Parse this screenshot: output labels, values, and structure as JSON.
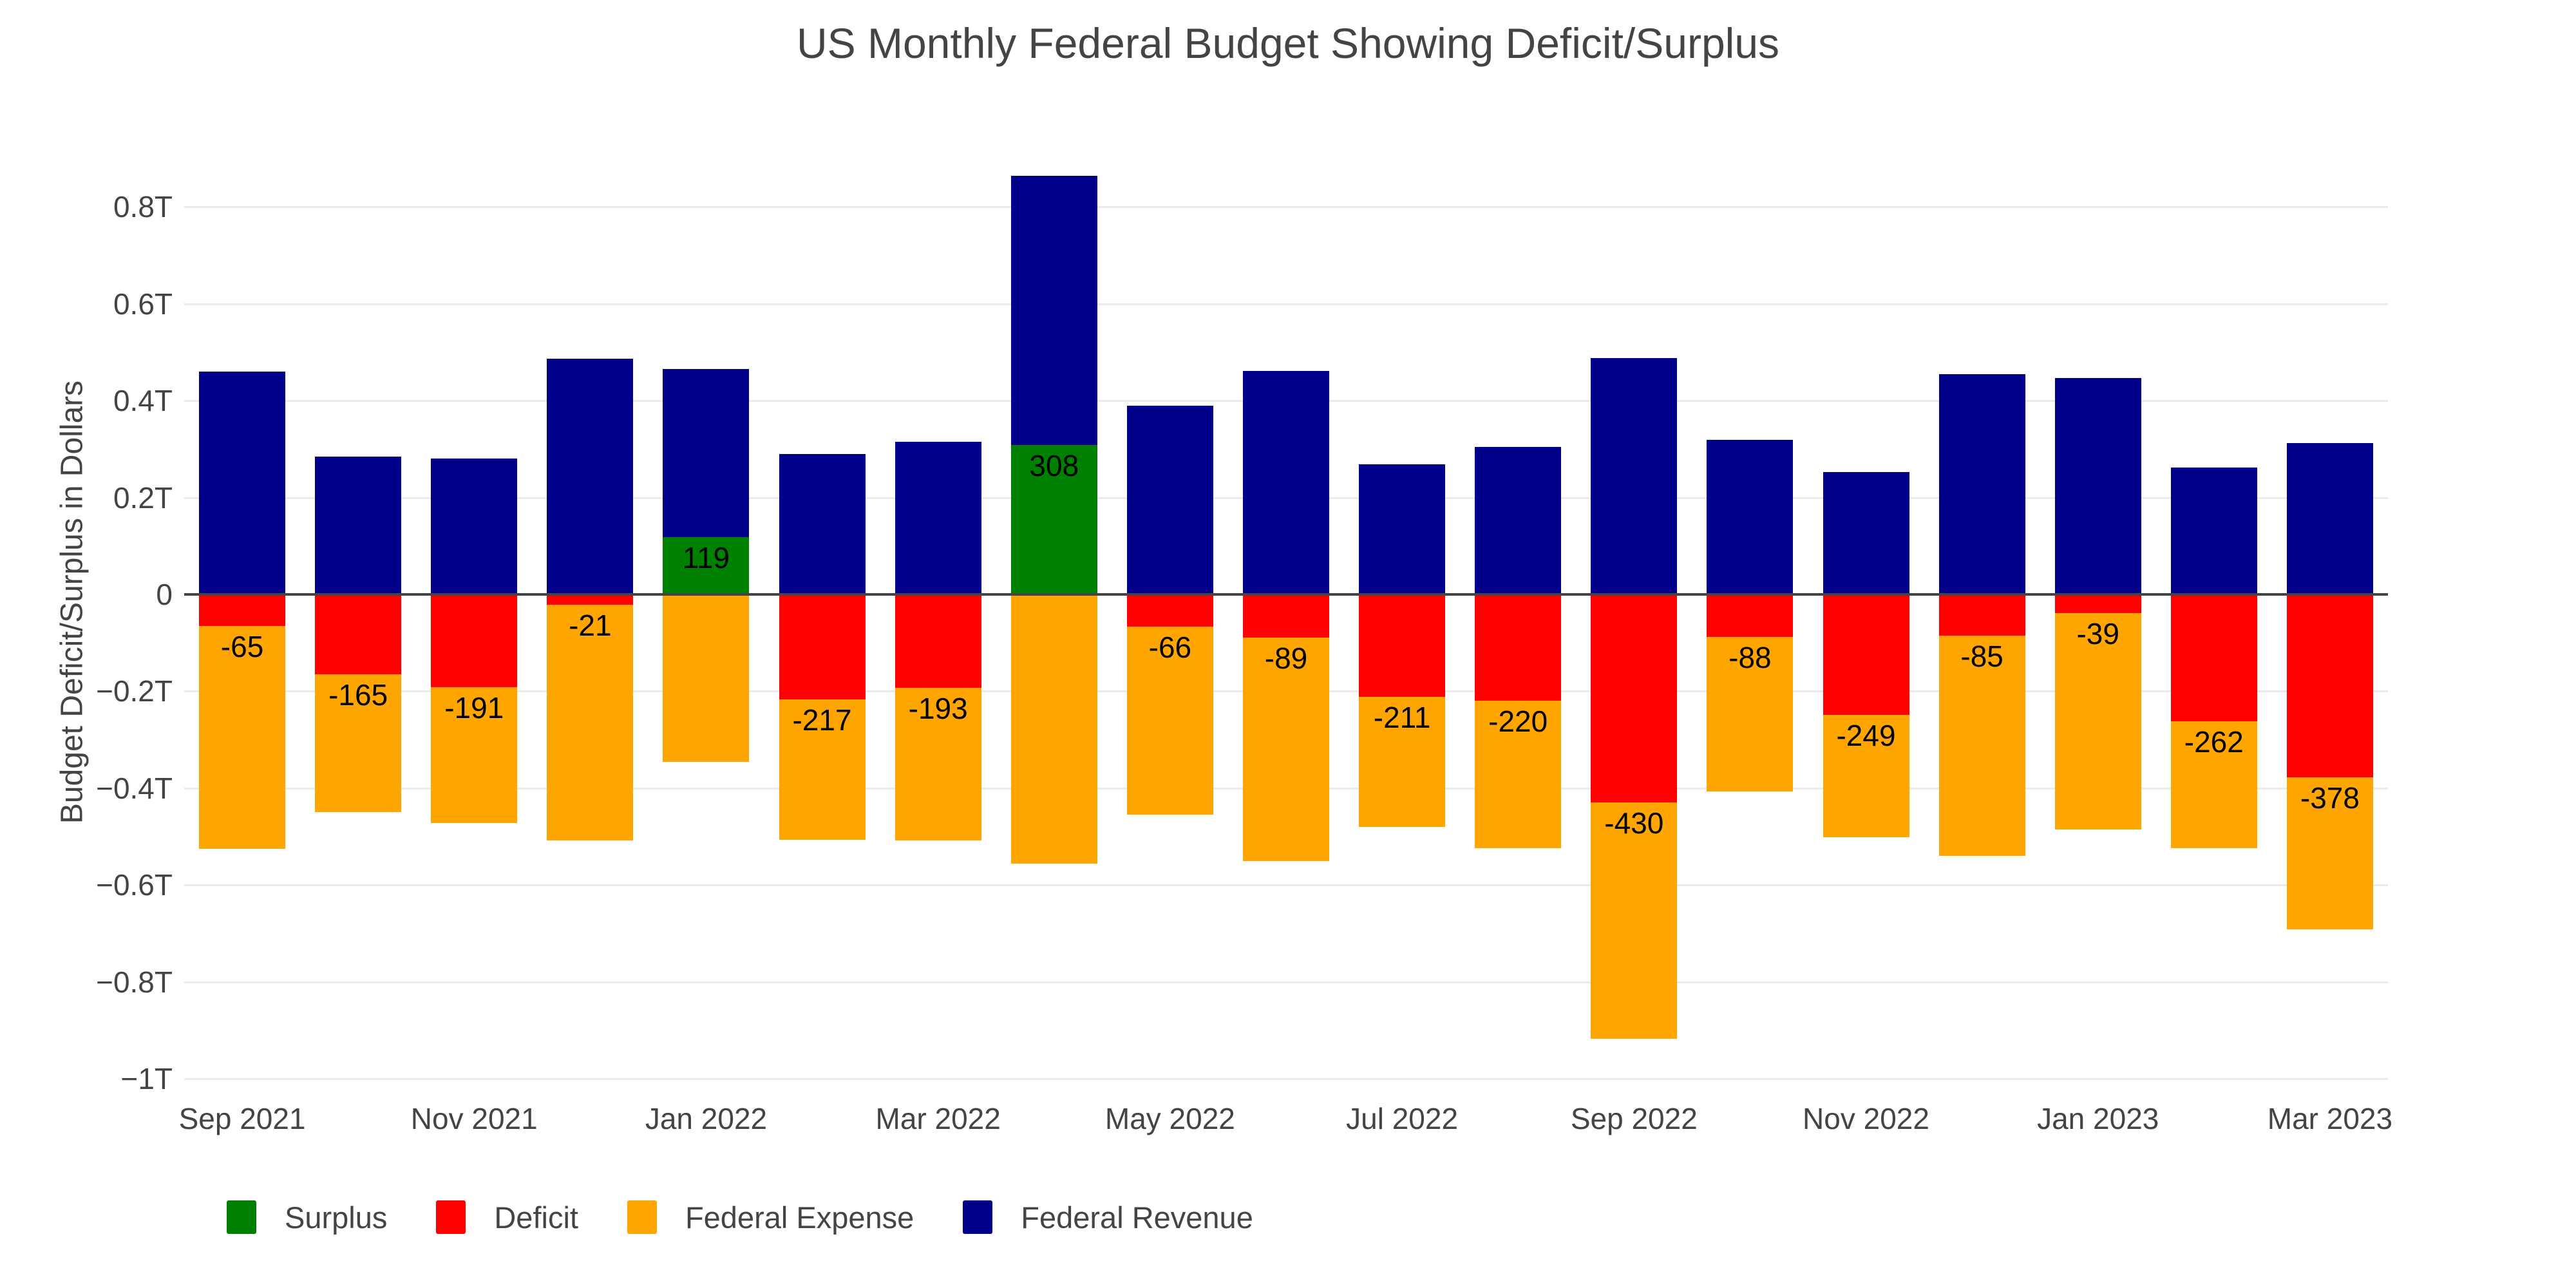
{
  "chart_data": {
    "type": "bar",
    "stacked": true,
    "title": "US Monthly Federal Budget Showing Deficit/Surplus",
    "xlabel": "",
    "ylabel": "Budget Deficit/Surplus in Dollars",
    "value_unit": "billions of dollars",
    "axis_unit": "trillions of dollars",
    "grid": true,
    "legend_position": "bottom-left",
    "ylim_billions": [
      -1030,
      940
    ],
    "categories": [
      "Sep 2021",
      "Oct 2021",
      "Nov 2021",
      "Dec 2021",
      "Jan 2022",
      "Feb 2022",
      "Mar 2022",
      "Apr 2022",
      "May 2022",
      "Jun 2022",
      "Jul 2022",
      "Aug 2022",
      "Sep 2022",
      "Oct 2022",
      "Nov 2022",
      "Dec 2022",
      "Jan 2023",
      "Feb 2023",
      "Mar 2023"
    ],
    "series": [
      {
        "name": "Surplus",
        "color": "#008000",
        "values": [
          0,
          0,
          0,
          0,
          119,
          0,
          0,
          308,
          0,
          0,
          0,
          0,
          0,
          0,
          0,
          0,
          0,
          0,
          0
        ]
      },
      {
        "name": "Deficit",
        "color": "#FF0000",
        "values": [
          -65,
          -165,
          -191,
          -21,
          0,
          -217,
          -193,
          0,
          -66,
          -89,
          -211,
          -220,
          -430,
          -88,
          -249,
          -85,
          -39,
          -262,
          -378
        ]
      },
      {
        "name": "Federal Expense",
        "color": "#FFA500",
        "values": [
          525,
          449,
          472,
          508,
          346,
          507,
          508,
          556,
          455,
          550,
          480,
          524,
          918,
          407,
          501,
          540,
          486,
          524,
          691
        ]
      },
      {
        "name": "Federal Revenue",
        "color": "#00008B",
        "values": [
          460,
          284,
          281,
          487,
          465,
          290,
          315,
          864,
          389,
          461,
          269,
          304,
          488,
          319,
          252,
          455,
          447,
          262,
          313
        ]
      }
    ],
    "bar_labels": [
      "-65",
      "-165",
      "-191",
      "-21",
      "119",
      "-217",
      "-193",
      "308",
      "-66",
      "-89",
      "-211",
      "-220",
      "-430",
      "-88",
      "-249",
      "-85",
      "-39",
      "-262",
      "-378"
    ],
    "y_ticks": [
      {
        "value": 800,
        "label": "0.8T"
      },
      {
        "value": 600,
        "label": "0.6T"
      },
      {
        "value": 400,
        "label": "0.4T"
      },
      {
        "value": 200,
        "label": "0.2T"
      },
      {
        "value": 0,
        "label": "0"
      },
      {
        "value": -200,
        "label": "−0.2T"
      },
      {
        "value": -400,
        "label": "−0.4T"
      },
      {
        "value": -600,
        "label": "−0.6T"
      },
      {
        "value": -800,
        "label": "−0.8T"
      },
      {
        "value": -1000,
        "label": "−1T"
      }
    ],
    "x_ticks": [
      {
        "index": 0,
        "label": "Sep 2021"
      },
      {
        "index": 2,
        "label": "Nov 2021"
      },
      {
        "index": 4,
        "label": "Jan 2022"
      },
      {
        "index": 6,
        "label": "Mar 2022"
      },
      {
        "index": 8,
        "label": "May 2022"
      },
      {
        "index": 10,
        "label": "Jul 2022"
      },
      {
        "index": 12,
        "label": "Sep 2022"
      },
      {
        "index": 14,
        "label": "Nov 2022"
      },
      {
        "index": 16,
        "label": "Jan 2023"
      },
      {
        "index": 18,
        "label": "Mar 2023"
      }
    ],
    "legend": [
      {
        "name": "Surplus",
        "color": "#008000"
      },
      {
        "name": "Deficit",
        "color": "#FF0000"
      },
      {
        "name": "Federal Expense",
        "color": "#FFA500"
      },
      {
        "name": "Federal Revenue",
        "color": "#00008B"
      }
    ],
    "layout_colors": {
      "background": "#ffffff",
      "grid": "#ebebeb",
      "zero_line": "#444444",
      "tick_text": "#444444",
      "title_text": "#444444",
      "bar_label_text": "#000000"
    }
  }
}
